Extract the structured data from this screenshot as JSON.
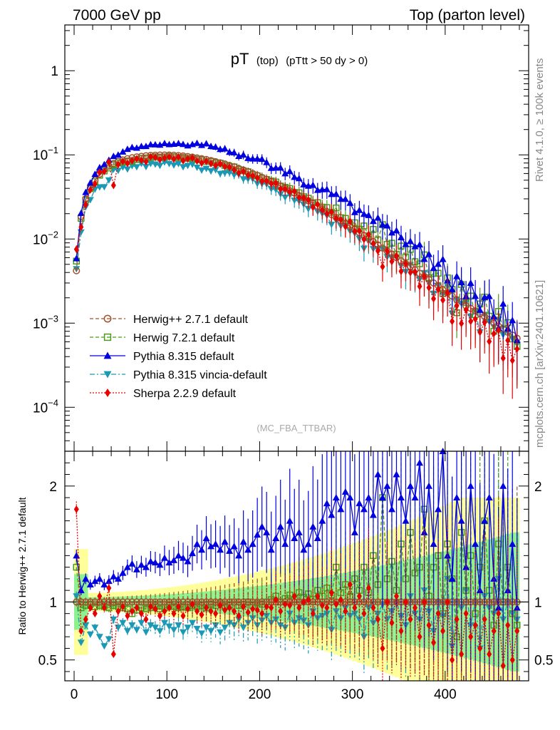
{
  "header": {
    "left": "7000 GeV pp",
    "right": "Top (parton level)"
  },
  "side_labels": {
    "rivet": "Rivet 4.1.0, ≥ 100k events",
    "mcplots": "mcplots.cern.ch [arXiv:2401.10621]"
  },
  "chart_data": {
    "type": "line",
    "title": "pT (top) (pTtt > 50 dy > 0)",
    "title_main": "pT",
    "title_sub1": "(top)",
    "title_sub2": "(pTtt > 50 dy > 0)",
    "analysis_tag": "(MC_FBA_TTBAR)",
    "xlabel": "",
    "ylabel_main": "",
    "ylabel_ratio": "Ratio to Herwig++ 2.7.1 default",
    "xlim": [
      -10,
      490
    ],
    "ylim_main": [
      3e-05,
      3.5
    ],
    "yscale_main": "log",
    "ylim_ratio": [
      0.32,
      2.3
    ],
    "x_ticks": [
      "0",
      "100",
      "200",
      "300",
      "400"
    ],
    "x_tick_values": [
      0,
      100,
      200,
      300,
      400
    ],
    "y_ticks_main": [
      {
        "base": "1",
        "exp": ""
      },
      {
        "base": "10",
        "exp": "−1"
      },
      {
        "base": "10",
        "exp": "−2"
      },
      {
        "base": "10",
        "exp": "−3"
      },
      {
        "base": "10",
        "exp": "−4"
      }
    ],
    "y_tick_values_main": [
      1,
      0.1,
      0.01,
      0.001,
      0.0001
    ],
    "y_ticks_ratio": [
      "0.5",
      "1",
      "2"
    ],
    "y_tick_values_ratio": [
      0.5,
      1,
      2
    ],
    "legend_position": "lower-left",
    "x": [
      2.5,
      7.5,
      12.5,
      17.5,
      22.5,
      27.5,
      32.5,
      37.5,
      42.5,
      47.5,
      52.5,
      57.5,
      62.5,
      67.5,
      72.5,
      77.5,
      82.5,
      87.5,
      92.5,
      97.5,
      102.5,
      107.5,
      112.5,
      117.5,
      122.5,
      127.5,
      132.5,
      137.5,
      142.5,
      147.5,
      152.5,
      157.5,
      162.5,
      167.5,
      172.5,
      177.5,
      182.5,
      187.5,
      192.5,
      197.5,
      202.5,
      207.5,
      212.5,
      217.5,
      222.5,
      227.5,
      232.5,
      237.5,
      242.5,
      247.5,
      252.5,
      257.5,
      262.5,
      267.5,
      272.5,
      277.5,
      282.5,
      287.5,
      292.5,
      297.5,
      302.5,
      307.5,
      312.5,
      317.5,
      322.5,
      327.5,
      332.5,
      337.5,
      342.5,
      347.5,
      352.5,
      357.5,
      362.5,
      367.5,
      372.5,
      377.5,
      382.5,
      387.5,
      392.5,
      397.5,
      402.5,
      407.5,
      412.5,
      417.5,
      422.5,
      427.5,
      432.5,
      437.5,
      442.5,
      447.5,
      452.5,
      457.5,
      462.5,
      467.5,
      472.5,
      477.5
    ],
    "reference": [
      0.0042,
      0.0185,
      0.03,
      0.0405,
      0.05,
      0.059,
      0.067,
      0.0735,
      0.079,
      0.0835,
      0.087,
      0.09,
      0.0925,
      0.0945,
      0.096,
      0.0975,
      0.0985,
      0.099,
      0.0995,
      0.0995,
      0.0995,
      0.099,
      0.098,
      0.097,
      0.0955,
      0.094,
      0.092,
      0.09,
      0.088,
      0.0855,
      0.083,
      0.0805,
      0.078,
      0.075,
      0.072,
      0.069,
      0.066,
      0.063,
      0.06,
      0.057,
      0.054,
      0.051,
      0.048,
      0.0453,
      0.0426,
      0.04,
      0.0375,
      0.0351,
      0.0328,
      0.0306,
      0.0285,
      0.0265,
      0.0246,
      0.0228,
      0.0211,
      0.0195,
      0.018,
      0.0166,
      0.0153,
      0.0141,
      0.013,
      0.0119,
      0.011,
      0.0101,
      0.0093,
      0.0085,
      0.0078,
      0.0072,
      0.0066,
      0.006,
      0.0055,
      0.0051,
      0.0047,
      0.0043,
      0.0039,
      0.0036,
      0.0033,
      0.003,
      0.0028,
      0.0025,
      0.0023,
      0.0021,
      0.0019,
      0.0018,
      0.0016,
      0.0015,
      0.0014,
      0.0013,
      0.0012,
      0.0011,
      0.001,
      0.00092,
      0.00085,
      0.00078,
      0.00072,
      0.00066
    ],
    "series": [
      {
        "name": "Herwig++ 2.7.1 default",
        "color": "#a0522d",
        "marker": "circle",
        "dash": "5,3",
        "ratio": [
          1,
          1,
          1,
          1,
          1,
          1,
          1,
          1,
          1,
          1,
          1,
          1,
          1,
          1,
          1,
          1,
          1,
          1,
          1,
          1,
          1,
          1,
          1,
          1,
          1,
          1,
          1,
          1,
          1,
          1,
          1,
          1,
          1,
          1,
          1,
          1,
          1,
          1,
          1,
          1,
          1,
          1,
          1,
          1,
          1,
          1,
          1,
          1,
          1,
          1,
          1,
          1,
          1,
          1,
          1,
          1,
          1,
          1,
          1,
          1,
          1,
          1,
          1,
          1,
          1,
          1,
          1,
          1,
          1,
          1,
          1,
          1,
          1,
          1,
          1,
          1,
          1,
          1,
          1,
          1,
          1,
          1,
          1,
          1,
          1,
          1,
          1,
          1,
          1,
          1,
          1,
          1,
          1,
          1,
          1,
          1
        ]
      },
      {
        "name": "Herwig 7.2.1 default",
        "color": "#4a9a1e",
        "marker": "square",
        "dash": "5,3",
        "ratio": [
          1.3,
          0.95,
          0.97,
          0.98,
          0.96,
          0.97,
          0.96,
          0.95,
          0.97,
          0.96,
          0.95,
          0.94,
          0.9,
          0.93,
          0.95,
          0.94,
          0.95,
          0.96,
          0.94,
          0.95,
          0.97,
          0.96,
          0.95,
          0.96,
          0.95,
          0.97,
          0.96,
          0.97,
          0.95,
          0.98,
          0.97,
          0.99,
          0.96,
          0.97,
          1.0,
          0.97,
          0.98,
          1.0,
          0.97,
          0.99,
          0.98,
          1.0,
          1.02,
          1.05,
          1.0,
          1.03,
          1.06,
          1.02,
          1.08,
          1.04,
          1.07,
          1.02,
          1.1,
          1.05,
          1.12,
          1.06,
          1.3,
          1.08,
          1.15,
          1.05,
          1.2,
          1.1,
          1.3,
          1.08,
          1.4,
          1.15,
          1.9,
          1.2,
          1.35,
          1.1,
          1.5,
          1.2,
          1.6,
          1.25,
          1.3,
          1.8,
          1.05,
          1.3,
          1.4,
          0.9,
          1.5,
          1.2,
          0.7,
          1.6,
          1.1,
          1.4,
          0.9,
          1.3,
          1.7,
          1.1,
          0.8,
          1.5,
          1.0,
          1.3,
          0.9,
          0.8
        ]
      },
      {
        "name": "Pythia 8.315 default",
        "color": "#0000e0",
        "marker": "triangle-up",
        "dash": "",
        "ratio": [
          1.4,
          1.1,
          1.2,
          1.15,
          1.18,
          1.2,
          1.15,
          1.18,
          1.22,
          1.2,
          1.25,
          1.3,
          1.33,
          1.28,
          1.32,
          1.3,
          1.35,
          1.34,
          1.32,
          1.38,
          1.34,
          1.36,
          1.4,
          1.38,
          1.35,
          1.42,
          1.5,
          1.45,
          1.55,
          1.48,
          1.5,
          1.45,
          1.52,
          1.44,
          1.48,
          1.4,
          1.52,
          1.45,
          1.5,
          1.58,
          1.65,
          1.6,
          1.45,
          1.55,
          1.65,
          1.5,
          1.7,
          1.55,
          1.6,
          1.45,
          1.5,
          1.65,
          1.55,
          1.7,
          1.85,
          1.75,
          1.9,
          1.8,
          1.95,
          1.9,
          1.6,
          1.85,
          1.8,
          1.9,
          1.75,
          2.1,
          1.9,
          2.0,
          1.8,
          2.1,
          1.9,
          1.7,
          2.0,
          1.9,
          2.2,
          1.6,
          2.0,
          1.5,
          1.8,
          2.3,
          1.4,
          1.2,
          1.9,
          1.7,
          1.3,
          2.0,
          1.5,
          1.1,
          1.7,
          1.9,
          1.2,
          0.95,
          2.0,
          1.1,
          1.5,
          0.95
        ]
      },
      {
        "name": "Pythia 8.315 vincia-default",
        "color": "#1a98b4",
        "marker": "triangle-down",
        "dash": "7,3,2,3",
        "ratio": [
          1.05,
          0.65,
          0.8,
          0.72,
          0.78,
          0.7,
          0.62,
          0.68,
          0.85,
          0.78,
          0.82,
          0.75,
          0.8,
          0.76,
          0.82,
          0.74,
          0.8,
          0.78,
          0.75,
          0.82,
          0.79,
          0.76,
          0.8,
          0.74,
          0.78,
          0.82,
          0.77,
          0.73,
          0.78,
          0.75,
          0.8,
          0.74,
          0.78,
          0.82,
          0.8,
          0.85,
          0.78,
          0.82,
          0.86,
          0.8,
          0.84,
          0.88,
          0.82,
          0.85,
          0.8,
          0.78,
          0.9,
          0.82,
          0.86,
          0.84,
          0.8,
          0.92,
          0.86,
          0.88,
          0.9,
          0.76,
          0.92,
          0.86,
          0.95,
          0.88,
          0.9,
          0.85,
          0.7,
          0.95,
          0.82,
          0.9,
          0.98,
          0.85,
          0.92,
          1.0,
          0.88,
          0.8,
          1.05,
          0.9,
          0.85,
          1.1,
          0.92,
          0.75,
          1.0,
          0.88,
          1.2,
          0.62,
          1.0,
          0.95,
          1.1,
          0.8,
          1.0,
          0.6,
          1.05,
          0.95,
          0.9,
          1.2,
          0.85,
          1.0,
          0.9,
          0.85
        ]
      },
      {
        "name": "Sherpa 2.2.9 default",
        "color": "#e80000",
        "marker": "diamond",
        "dash": "2,2",
        "ratio": [
          1.8,
          0.75,
          0.85,
          0.95,
          0.9,
          1.05,
          0.95,
          1.12,
          0.55,
          0.92,
          0.96,
          0.88,
          0.92,
          0.95,
          0.9,
          0.85,
          0.96,
          0.94,
          0.88,
          0.92,
          0.95,
          0.9,
          0.96,
          0.88,
          0.94,
          0.98,
          0.92,
          0.89,
          0.95,
          0.92,
          0.9,
          0.97,
          0.93,
          0.95,
          0.92,
          0.88,
          0.96,
          0.91,
          0.94,
          0.93,
          0.9,
          0.96,
          0.95,
          1.02,
          0.92,
          0.98,
          0.97,
          1.05,
          0.95,
          1.0,
          1.02,
          0.9,
          1.05,
          0.97,
          0.95,
          1.08,
          0.98,
          1.02,
          0.92,
          1.15,
          0.95,
          1.05,
          0.9,
          1.12,
          0.95,
          0.85,
          0.6,
          1.0,
          0.82,
          1.05,
          0.75,
          1.0,
          0.85,
          0.95,
          0.7,
          1.0,
          0.8,
          0.65,
          0.9,
          0.75,
          1.0,
          0.5,
          0.85,
          0.55,
          0.9,
          0.7,
          0.8,
          0.6,
          0.85,
          0.55,
          0.75,
          0.9,
          0.45,
          0.8,
          0.5,
          0.75
        ]
      }
    ]
  }
}
